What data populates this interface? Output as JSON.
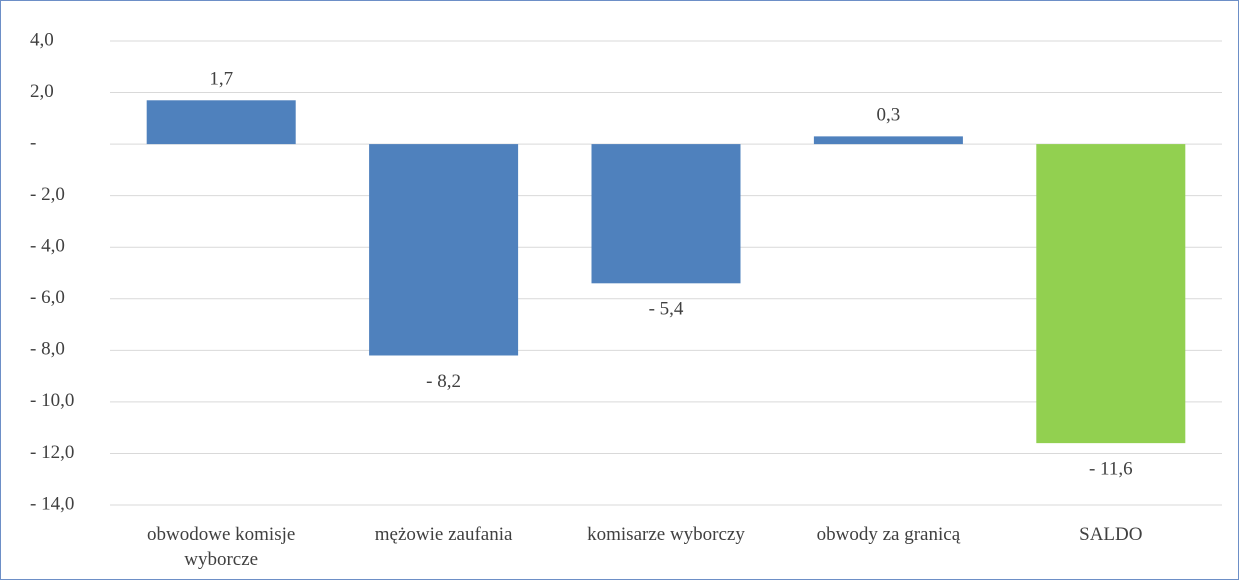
{
  "chart_data": {
    "type": "bar",
    "categories": [
      "obwodowe komisje wyborcze",
      "mężowie zaufania",
      "komisarze wyborczy",
      "obwody za granicą",
      "SALDO"
    ],
    "values": [
      1.7,
      -8.2,
      -5.4,
      0.3,
      -11.6
    ],
    "value_labels": [
      "1,7",
      "- 8,2",
      "- 5,4",
      "0,3",
      "- 11,6"
    ],
    "colors": [
      "#4f81bd",
      "#4f81bd",
      "#4f81bd",
      "#4f81bd",
      "#92d050"
    ],
    "ylim": [
      -14,
      4
    ],
    "yticks": [
      {
        "value": 4,
        "label": "4,0"
      },
      {
        "value": 2,
        "label": "2,0"
      },
      {
        "value": 0,
        "label": "-"
      },
      {
        "value": -2,
        "label": "- 2,0"
      },
      {
        "value": -4,
        "label": "- 4,0"
      },
      {
        "value": -6,
        "label": "- 6,0"
      },
      {
        "value": -8,
        "label": "- 8,0"
      },
      {
        "value": -10,
        "label": "- 10,0"
      },
      {
        "value": -12,
        "label": "- 12,0"
      },
      {
        "value": -14,
        "label": "- 14,0"
      }
    ],
    "grid": true
  }
}
